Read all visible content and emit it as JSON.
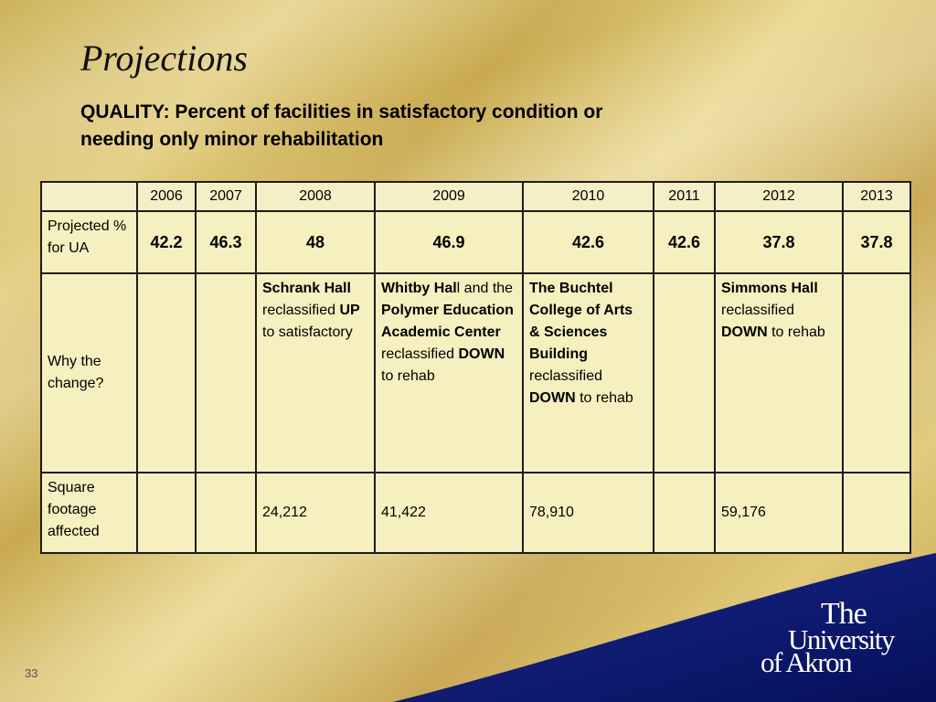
{
  "slide": {
    "title": "Projections",
    "subtitle": "QUALITY: Percent of facilities in satisfactory condition or needing only minor rehabilitation",
    "page_number": "33"
  },
  "table": {
    "headers": [
      "",
      "2006",
      "2007",
      "2008",
      "2009",
      "2010",
      "2011",
      "2012",
      "2013"
    ],
    "projected": {
      "label": "Projected % for UA",
      "values": [
        "42.2",
        "46.3",
        "48",
        "46.9",
        "42.6",
        "42.6",
        "37.8",
        "37.8"
      ]
    },
    "why": {
      "label": "Why the change?",
      "2008": {
        "part1": "Schrank Hall",
        "part2": " reclassified ",
        "part3": "UP",
        "part4": " to satisfactory"
      },
      "2009": {
        "part1": "Whitby Hal",
        "part1b": "l",
        "part2": " and the ",
        "part3": "Polymer Education Academic Center",
        "part4": " reclassified ",
        "part5": "DOWN",
        "part6": " to rehab"
      },
      "2010": {
        "part1": "The Buchtel College of Arts & Sciences Building",
        "part2": " reclassified ",
        "part3": "DOWN",
        "part4": " to rehab"
      },
      "2012": {
        "part1": "Simmons Hall",
        "part2": " reclassified ",
        "part3": "DOWN",
        "part4": " to rehab"
      }
    },
    "square_footage": {
      "label": "Square footage affected",
      "values": [
        "",
        "",
        "24,212",
        "41,422",
        "78,910",
        "",
        "59,176",
        ""
      ]
    }
  },
  "logo": {
    "line1": "The",
    "line2": "University",
    "line3": "of Akron"
  },
  "colors": {
    "gold_background": "#d4bb66",
    "table_fill": "#f6efbf",
    "navy": "#0b1a6e"
  }
}
